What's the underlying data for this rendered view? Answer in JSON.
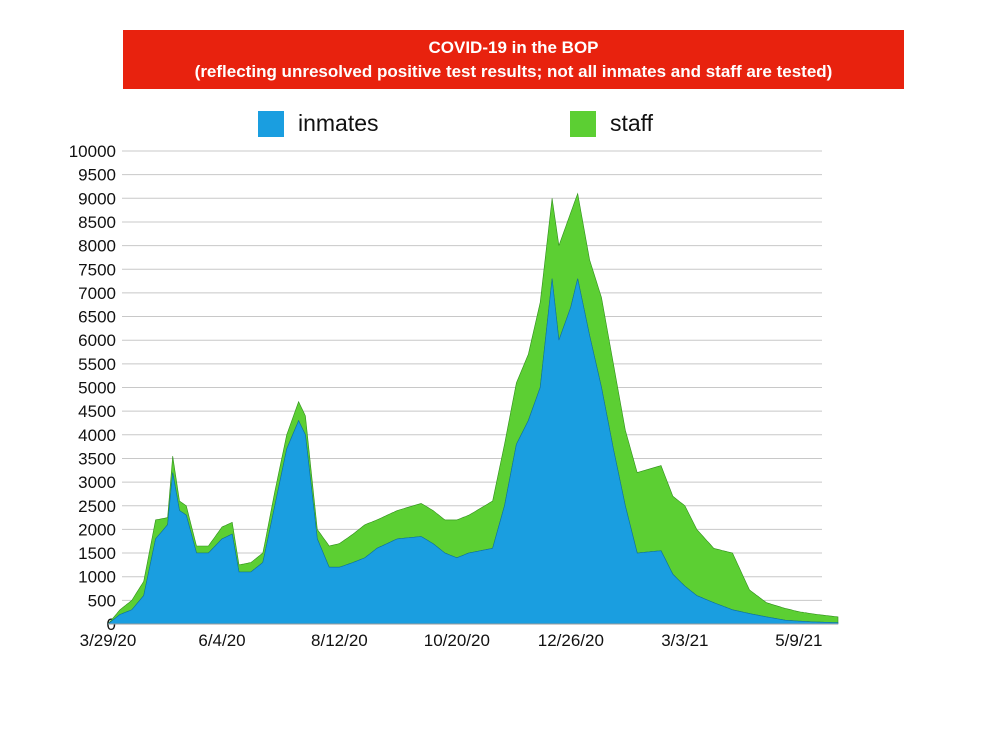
{
  "title": {
    "line1": "COVID-19 in the BOP",
    "line2": "(reflecting unresolved positive test results; not all inmates and staff are tested)"
  },
  "colors": {
    "title_bg": "#e8220e",
    "inmates": "#1a9ee0",
    "staff": "#5ccf33",
    "grid": "#c8c8c8"
  },
  "legend": {
    "inmates_label": "inmates",
    "staff_label": "staff"
  },
  "chart_data": {
    "type": "area",
    "stacked": true,
    "title": "COVID-19 in the BOP",
    "subtitle": "(reflecting unresolved positive test results; not all inmates and staff are tested)",
    "xlabel": "",
    "ylabel": "",
    "ylim": [
      0,
      10000
    ],
    "yticks": [
      0,
      500,
      1000,
      1500,
      2000,
      2500,
      3000,
      3500,
      4000,
      4500,
      5000,
      5500,
      6000,
      6500,
      7000,
      7500,
      8000,
      8500,
      9000,
      9500,
      10000
    ],
    "xticks": [
      "3/29/20",
      "6/4/20",
      "8/12/20",
      "10/20/20",
      "12/26/20",
      "3/3/21",
      "5/9/21"
    ],
    "grid": true,
    "legend_position": "top",
    "x_start": "3/29/20",
    "x_end": "6/1/21",
    "series": [
      {
        "name": "inmates",
        "points": [
          [
            "3/29/20",
            0
          ],
          [
            "4/5/20",
            200
          ],
          [
            "4/12/20",
            300
          ],
          [
            "4/19/20",
            600
          ],
          [
            "4/26/20",
            1800
          ],
          [
            "5/3/20",
            2100
          ],
          [
            "5/6/20",
            3200
          ],
          [
            "5/10/20",
            2400
          ],
          [
            "5/14/20",
            2300
          ],
          [
            "5/20/20",
            1500
          ],
          [
            "5/27/20",
            1500
          ],
          [
            "6/4/20",
            1800
          ],
          [
            "6/10/20",
            1900
          ],
          [
            "6/14/20",
            1100
          ],
          [
            "6/21/20",
            1100
          ],
          [
            "6/28/20",
            1300
          ],
          [
            "7/5/20",
            2500
          ],
          [
            "7/12/20",
            3700
          ],
          [
            "7/19/20",
            4300
          ],
          [
            "7/23/20",
            4000
          ],
          [
            "7/30/20",
            1800
          ],
          [
            "8/6/20",
            1200
          ],
          [
            "8/12/20",
            1200
          ],
          [
            "8/20/20",
            1300
          ],
          [
            "8/27/20",
            1400
          ],
          [
            "9/3/20",
            1600
          ],
          [
            "9/15/20",
            1800
          ],
          [
            "9/29/20",
            1850
          ],
          [
            "10/6/20",
            1700
          ],
          [
            "10/13/20",
            1500
          ],
          [
            "10/20/20",
            1400
          ],
          [
            "10/27/20",
            1500
          ],
          [
            "11/3/20",
            1550
          ],
          [
            "11/10/20",
            1600
          ],
          [
            "11/17/20",
            2500
          ],
          [
            "11/24/20",
            3800
          ],
          [
            "12/1/20",
            4300
          ],
          [
            "12/8/20",
            5000
          ],
          [
            "12/15/20",
            7300
          ],
          [
            "12/19/20",
            6000
          ],
          [
            "12/26/20",
            6700
          ],
          [
            "12/30/20",
            7300
          ],
          [
            "1/6/21",
            6100
          ],
          [
            "1/13/21",
            5000
          ],
          [
            "1/20/21",
            3700
          ],
          [
            "1/27/21",
            2500
          ],
          [
            "2/3/21",
            1500
          ],
          [
            "2/17/21",
            1550
          ],
          [
            "2/24/21",
            1050
          ],
          [
            "3/3/21",
            800
          ],
          [
            "3/10/21",
            600
          ],
          [
            "3/20/21",
            450
          ],
          [
            "3/31/21",
            300
          ],
          [
            "4/10/21",
            220
          ],
          [
            "4/20/21",
            150
          ],
          [
            "5/1/21",
            80
          ],
          [
            "5/9/21",
            60
          ],
          [
            "5/20/21",
            40
          ],
          [
            "6/1/21",
            30
          ]
        ]
      },
      {
        "name": "staff",
        "points": [
          [
            "3/29/20",
            0
          ],
          [
            "4/5/20",
            100
          ],
          [
            "4/12/20",
            200
          ],
          [
            "4/19/20",
            300
          ],
          [
            "4/26/20",
            400
          ],
          [
            "5/3/20",
            150
          ],
          [
            "5/6/20",
            350
          ],
          [
            "5/10/20",
            200
          ],
          [
            "5/14/20",
            200
          ],
          [
            "5/20/20",
            150
          ],
          [
            "5/27/20",
            150
          ],
          [
            "6/4/20",
            250
          ],
          [
            "6/10/20",
            250
          ],
          [
            "6/14/20",
            150
          ],
          [
            "6/21/20",
            200
          ],
          [
            "6/28/20",
            200
          ],
          [
            "7/5/20",
            300
          ],
          [
            "7/12/20",
            300
          ],
          [
            "7/19/20",
            400
          ],
          [
            "7/23/20",
            400
          ],
          [
            "7/30/20",
            200
          ],
          [
            "8/6/20",
            450
          ],
          [
            "8/12/20",
            500
          ],
          [
            "8/20/20",
            600
          ],
          [
            "8/27/20",
            700
          ],
          [
            "9/3/20",
            600
          ],
          [
            "9/15/20",
            600
          ],
          [
            "9/29/20",
            700
          ],
          [
            "10/6/20",
            700
          ],
          [
            "10/13/20",
            700
          ],
          [
            "10/20/20",
            800
          ],
          [
            "10/27/20",
            800
          ],
          [
            "11/3/20",
            900
          ],
          [
            "11/10/20",
            1000
          ],
          [
            "11/17/20",
            1300
          ],
          [
            "11/24/20",
            1300
          ],
          [
            "12/1/20",
            1400
          ],
          [
            "12/8/20",
            1800
          ],
          [
            "12/15/20",
            1700
          ],
          [
            "12/19/20",
            2000
          ],
          [
            "12/26/20",
            2000
          ],
          [
            "12/30/20",
            1800
          ],
          [
            "1/6/21",
            1600
          ],
          [
            "1/13/21",
            1900
          ],
          [
            "1/20/21",
            1800
          ],
          [
            "1/27/21",
            1600
          ],
          [
            "2/3/21",
            1700
          ],
          [
            "2/17/21",
            1800
          ],
          [
            "2/24/21",
            1650
          ],
          [
            "3/3/21",
            1700
          ],
          [
            "3/10/21",
            1400
          ],
          [
            "3/20/21",
            1150
          ],
          [
            "3/31/21",
            1200
          ],
          [
            "4/10/21",
            500
          ],
          [
            "4/20/21",
            300
          ],
          [
            "5/1/21",
            250
          ],
          [
            "5/9/21",
            200
          ],
          [
            "5/20/21",
            160
          ],
          [
            "6/1/21",
            120
          ]
        ]
      }
    ]
  }
}
